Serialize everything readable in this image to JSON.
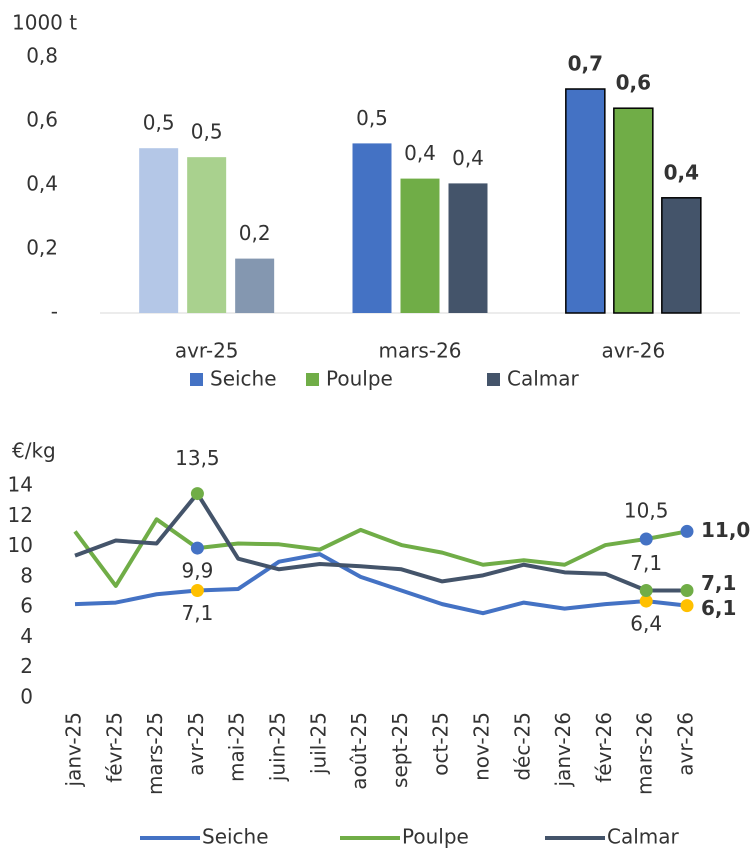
{
  "chart_data": [
    {
      "type": "bar",
      "y_unit": "1000 t",
      "categories": [
        "avr-25",
        "mars-26",
        "avr-26"
      ],
      "series": [
        {
          "name": "Seiche",
          "color": "#4472c4",
          "colors": [
            "#b4c7e7",
            "#4472c4",
            "#4472c4"
          ],
          "values": [
            0.515,
            0.53,
            0.7
          ],
          "value_labels": [
            "0,5",
            "0,5",
            "0,7"
          ]
        },
        {
          "name": "Poulpe",
          "color": "#70ad47",
          "colors": [
            "#a9d18e",
            "#70ad47",
            "#70ad47"
          ],
          "values": [
            0.487,
            0.42,
            0.64
          ],
          "value_labels": [
            "0,5",
            "0,4",
            "0,6"
          ]
        },
        {
          "name": "Calmar",
          "color": "#44546a",
          "colors": [
            "#8497b0",
            "#44546a",
            "#44546a"
          ],
          "values": [
            0.17,
            0.405,
            0.36
          ],
          "value_labels": [
            "0,2",
            "0,4",
            "0,4"
          ]
        }
      ],
      "ylim": [
        0,
        0.8
      ],
      "yticks": [
        {
          "value": 0,
          "label": "-"
        },
        {
          "value": 0.2,
          "label": "0,2"
        },
        {
          "value": 0.4,
          "label": "0,4"
        },
        {
          "value": 0.6,
          "label": "0,6"
        },
        {
          "value": 0.8,
          "label": "0,8"
        }
      ],
      "grid": false
    },
    {
      "type": "line",
      "y_unit": "€/kg",
      "categories": [
        "janv-25",
        "févr-25",
        "mars-25",
        "avr-25",
        "mai-25",
        "juin-25",
        "juil-25",
        "août-25",
        "sept-25",
        "oct-25",
        "nov-25",
        "déc-25",
        "janv-26",
        "févr-26",
        "mars-26",
        "avr-26"
      ],
      "series": [
        {
          "name": "Seiche",
          "color": "#4472c4",
          "marker_color": "#ffc000",
          "values": [
            6.2,
            6.3,
            6.85,
            7.1,
            7.2,
            9.0,
            9.5,
            8.0,
            7.1,
            6.2,
            5.6,
            6.3,
            5.9,
            6.2,
            6.4,
            6.1
          ],
          "value_labels": [
            null,
            null,
            null,
            "7,1",
            null,
            null,
            null,
            null,
            null,
            null,
            null,
            null,
            null,
            null,
            "6,4",
            "6,1"
          ]
        },
        {
          "name": "Poulpe",
          "color": "#70ad47",
          "marker_color": "#4472c4",
          "values": [
            11.0,
            7.4,
            11.8,
            9.9,
            10.2,
            10.15,
            9.8,
            11.1,
            10.1,
            9.6,
            8.8,
            9.1,
            8.8,
            10.1,
            10.5,
            11.0
          ],
          "value_labels": [
            null,
            null,
            null,
            "9,9",
            null,
            null,
            null,
            null,
            null,
            null,
            null,
            null,
            null,
            null,
            "10,5",
            "11,0"
          ]
        },
        {
          "name": "Calmar",
          "color": "#44546a",
          "marker_color": "#70ad47",
          "values": [
            9.4,
            10.4,
            10.2,
            13.5,
            9.2,
            8.5,
            8.85,
            8.7,
            8.5,
            7.7,
            8.1,
            8.8,
            8.3,
            8.2,
            7.1,
            7.1
          ],
          "value_labels": [
            null,
            null,
            null,
            "13,5",
            null,
            null,
            null,
            null,
            null,
            null,
            null,
            null,
            null,
            null,
            "7,1",
            "7,1"
          ]
        }
      ],
      "ylim": [
        0,
        14
      ],
      "yticks": [
        0,
        2,
        4,
        6,
        8,
        10,
        12,
        14
      ],
      "grid": false
    }
  ]
}
